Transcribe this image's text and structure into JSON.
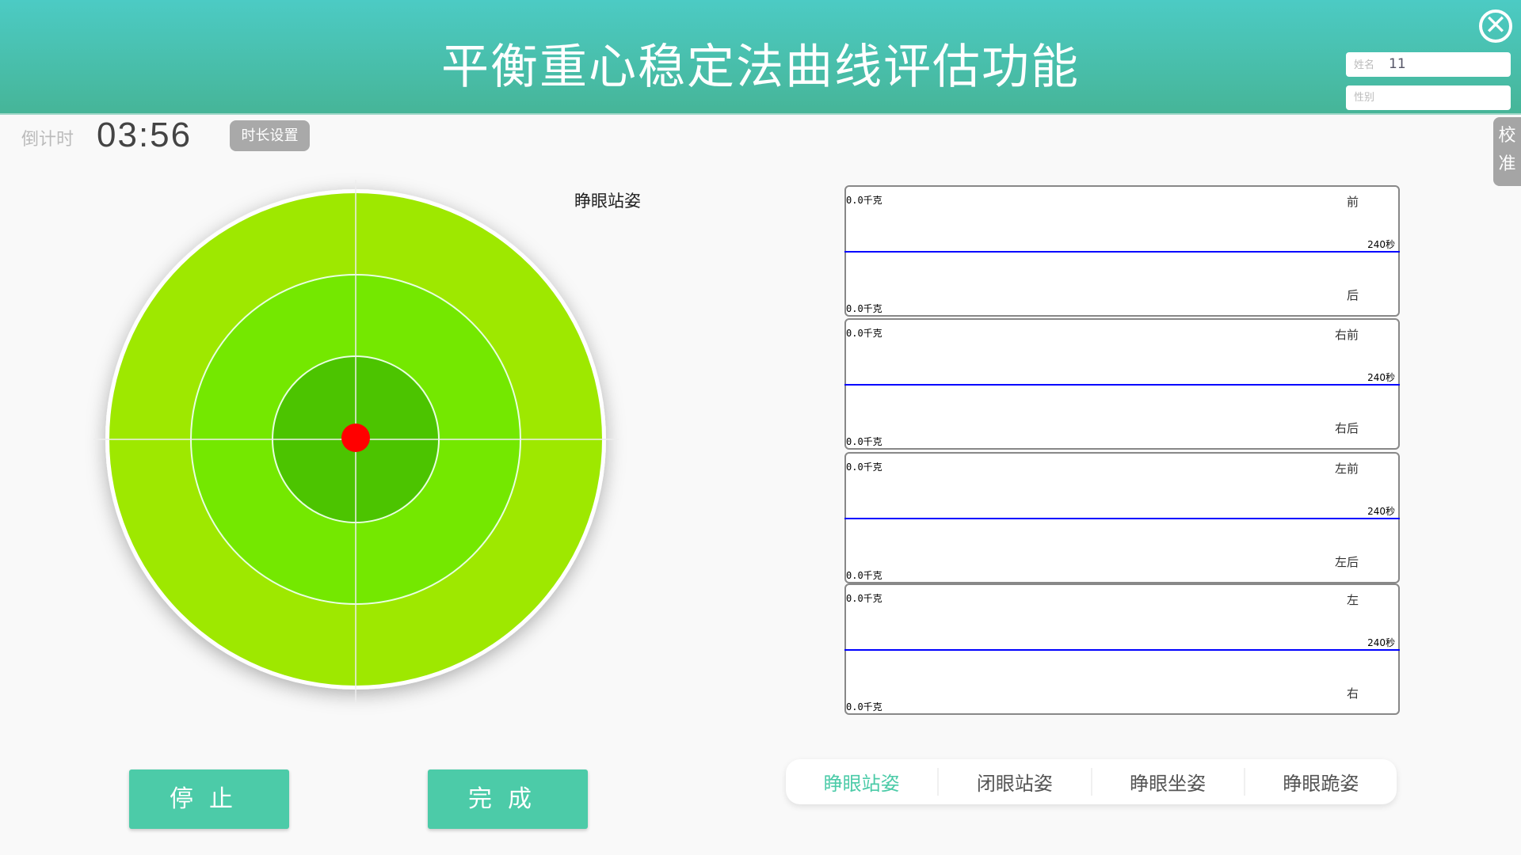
{
  "header": {
    "title": "平衡重心稳定法曲线评估功能",
    "close_icon": "close-circle-icon"
  },
  "patient": {
    "name_label": "姓名",
    "name_value": "11",
    "gender_label": "性别",
    "gender_value": ""
  },
  "calibrate": {
    "line1": "校",
    "line2": "准"
  },
  "countdown": {
    "label": "倒计时",
    "time": "03:56",
    "duration_button": "时长设置"
  },
  "target": {
    "pose_label": "睁眼站姿",
    "colors": {
      "outer": "#9ee800",
      "middle": "#74e800",
      "inner": "#4cc400",
      "dot": "#ff0000"
    }
  },
  "charts": [
    {
      "top_value": "0.0千克",
      "top_dir": "前",
      "time": "240秒",
      "bottom_dir": "后",
      "bottom_value": "0.0千克"
    },
    {
      "top_value": "0.0千克",
      "top_dir": "右前",
      "time": "240秒",
      "bottom_dir": "右后",
      "bottom_value": "0.0千克"
    },
    {
      "top_value": "0.0千克",
      "top_dir": "左前",
      "time": "240秒",
      "bottom_dir": "左后",
      "bottom_value": "0.0千克"
    },
    {
      "top_value": "0.0千克",
      "top_dir": "左",
      "time": "240秒",
      "bottom_dir": "右",
      "bottom_value": "0.0千克"
    }
  ],
  "buttons": {
    "stop": "停止",
    "finish": "完成"
  },
  "tabs": [
    {
      "label": "睁眼站姿",
      "active": true
    },
    {
      "label": "闭眼站姿"
    },
    {
      "label": "睁眼坐姿"
    },
    {
      "label": "睁眼跪姿"
    }
  ],
  "accent": "#4ccba8"
}
